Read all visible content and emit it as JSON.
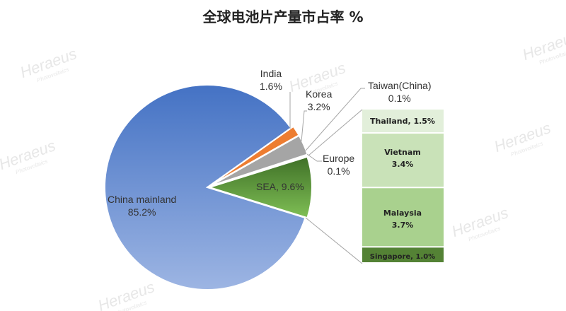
{
  "title": "全球电池片产量市占率 %",
  "watermark": {
    "brand": "Heraeus",
    "sub": "Photovoltaics"
  },
  "chart_data": {
    "type": "pie-of-bar",
    "title": "全球电池片产量市占率 %",
    "pie": [
      {
        "name": "SEA",
        "value": 9.6,
        "label": "SEA, 9.6%",
        "color": "#5f9a3c"
      },
      {
        "name": "China mainland",
        "value": 85.2,
        "label": [
          "China mainland",
          "85.2%"
        ],
        "color": "#6a8fd4"
      },
      {
        "name": "India",
        "value": 1.6,
        "label": [
          "India",
          "1.6%"
        ],
        "color": "#ed7d31"
      },
      {
        "name": "Korea",
        "value": 3.2,
        "label": [
          "Korea",
          "3.2%"
        ],
        "color": "#a5a5a5"
      },
      {
        "name": "Taiwan(China)",
        "value": 0.1,
        "label": [
          "Taiwan(China)",
          "0.1%"
        ],
        "color": "#ffc000"
      },
      {
        "name": "Europe",
        "value": 0.1,
        "label": [
          "Europe",
          "0.1%"
        ],
        "color": "#5b9bd5"
      }
    ],
    "bar": [
      {
        "name": "Thailand",
        "value": 1.5,
        "label": "Thailand, 1.5%",
        "color": "#e2efda"
      },
      {
        "name": "Vietnam",
        "value": 3.4,
        "label": [
          "Vietnam",
          "3.4%"
        ],
        "color": "#c9e2b8"
      },
      {
        "name": "Malaysia",
        "value": 3.7,
        "label": [
          "Malaysia",
          "3.7%"
        ],
        "color": "#a9d18e"
      },
      {
        "name": "Singapore",
        "value": 1.0,
        "label": "Singapore, 1.0%",
        "color": "#548235"
      }
    ]
  }
}
